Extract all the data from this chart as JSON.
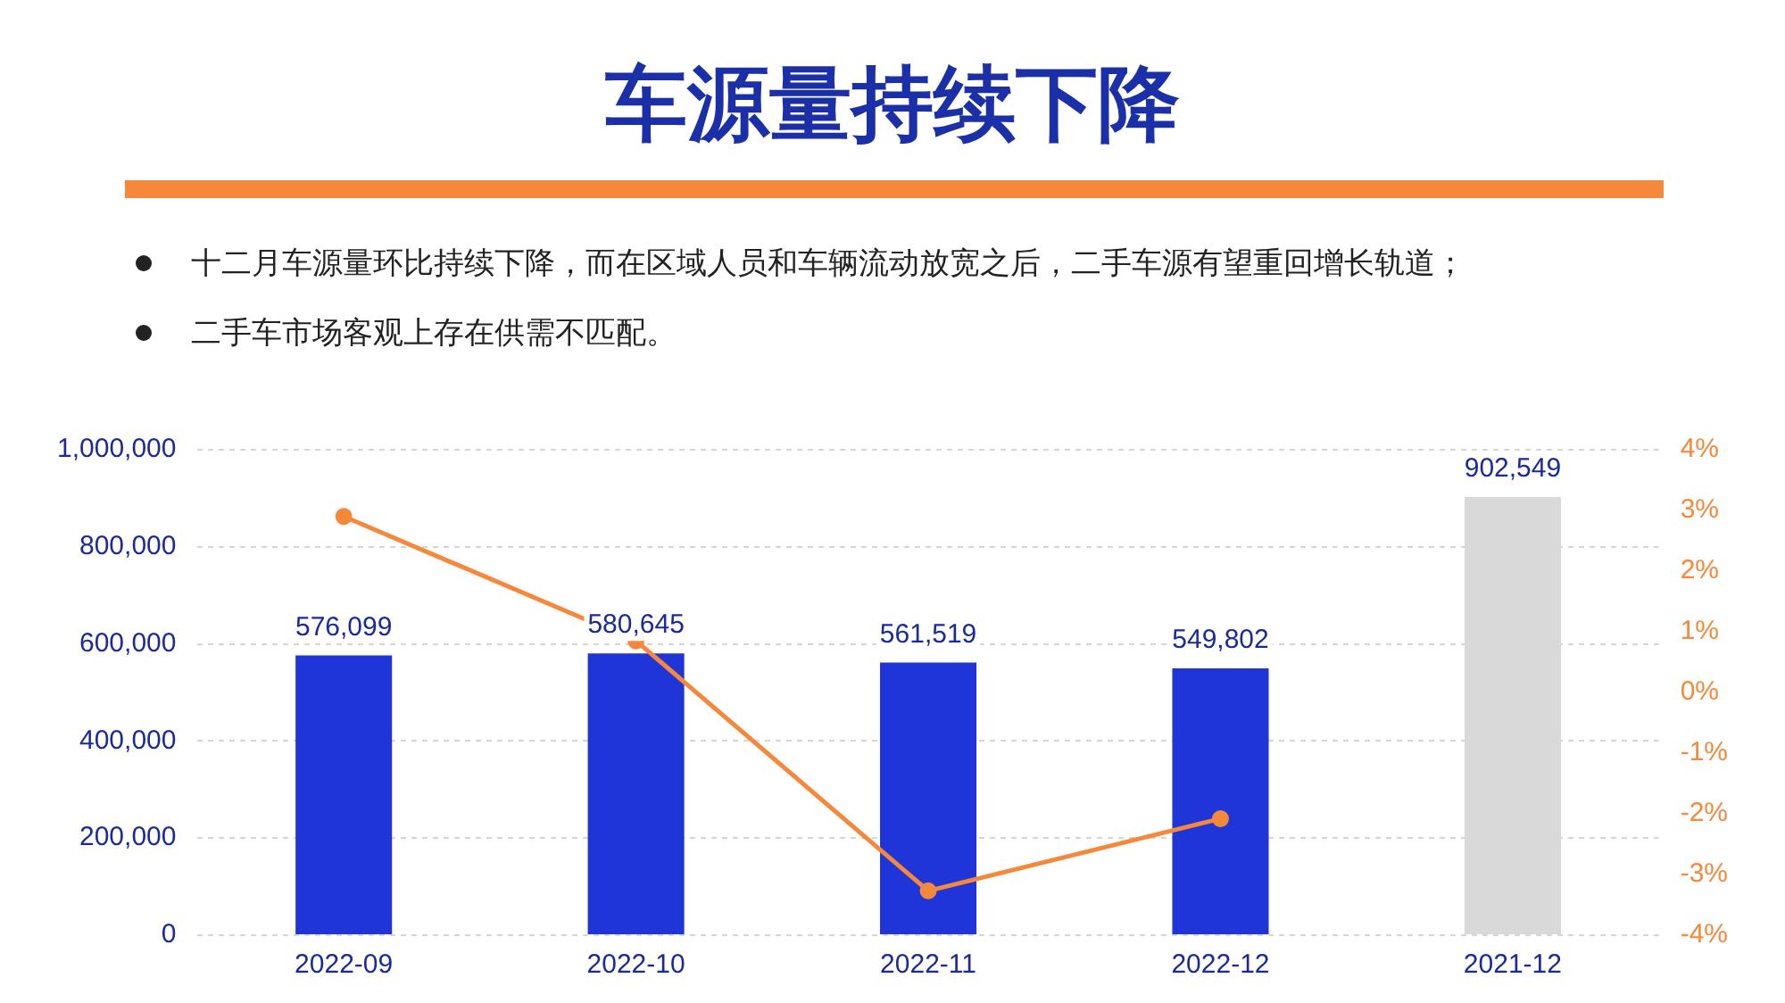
{
  "chart_data": {
    "type": "bar",
    "title": "车源量持续下降",
    "annotations": [
      "十二月车源量环比持续下降，而在区域人员和车辆流动放宽之后，二手车源有望重回增长轨道；",
      "二手车市场客观上存在供需不匹配。"
    ],
    "categories": [
      "2022-09",
      "2022-10",
      "2022-11",
      "2022-12",
      "2021-12"
    ],
    "series": [
      {
        "colors": [
          "#1f35d8",
          "#1f35d8",
          "#1f35d8",
          "#1f35d8",
          "#d9d9d9"
        ],
        "values": [
          576099,
          580645,
          561519,
          549802,
          902549
        ],
        "value_labels": [
          "576,099",
          "580,645",
          "561,519",
          "549,802",
          "902,549"
        ]
      },
      {
        "type": "line",
        "axis": "y2",
        "color": "#f5883a",
        "values": [
          2.9,
          0.85,
          -3.27,
          -2.08,
          null
        ]
      }
    ],
    "ylim": [
      0,
      1000000
    ],
    "yticks": [
      {
        "value": 0,
        "label": "0"
      },
      {
        "value": 200000,
        "label": "200,000"
      },
      {
        "value": 400000,
        "label": "400,000"
      },
      {
        "value": 600000,
        "label": "600,000"
      },
      {
        "value": 800000,
        "label": "800,000"
      },
      {
        "value": 1000000,
        "label": "1,000,000"
      }
    ],
    "y2lim": [
      -4,
      4
    ],
    "y2ticks": [
      {
        "value": -4,
        "label": "-4%"
      },
      {
        "value": -3,
        "label": "-3%"
      },
      {
        "value": -2,
        "label": "-2%"
      },
      {
        "value": -1,
        "label": "-1%"
      },
      {
        "value": 0,
        "label": "0%"
      },
      {
        "value": 1,
        "label": "1%"
      },
      {
        "value": 2,
        "label": "2%"
      },
      {
        "value": 3,
        "label": "3%"
      },
      {
        "value": 4,
        "label": "4%"
      }
    ],
    "grid": "y",
    "marker": "circle",
    "legend": false
  }
}
